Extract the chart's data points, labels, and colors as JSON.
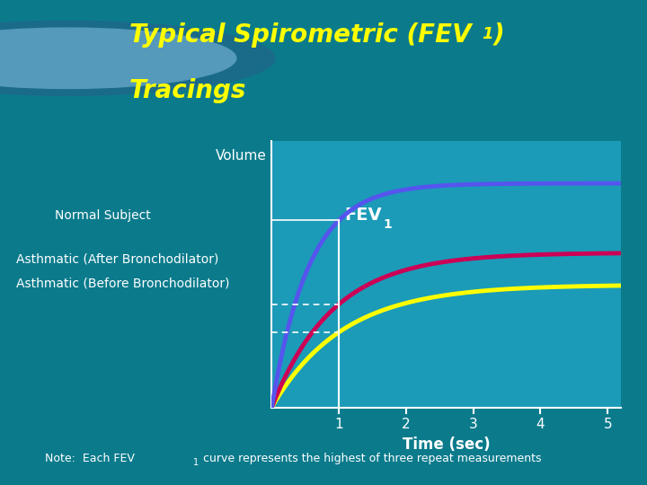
{
  "title_line1": "Typical Spirometric (FEV",
  "title_line2": "Tracings",
  "title_color": "#FFFF00",
  "header_bg": "#0B7B8C",
  "chart_bg": "#1B9BB8",
  "note_bg": "#1B9BB8",
  "separator_color": "#CCFF00",
  "curves": {
    "normal": {
      "color": "#5555EE",
      "amplitude": 4.2,
      "rate": 1.8
    },
    "after": {
      "color": "#CC0055",
      "amplitude": 2.9,
      "rate": 1.1
    },
    "before": {
      "color": "#FFFF00",
      "amplitude": 2.3,
      "rate": 0.95
    }
  },
  "fev1_line_x": 1.0,
  "x_ticks": [
    1,
    2,
    3,
    4,
    5
  ],
  "xlim": [
    0,
    5.2
  ],
  "ylim": [
    0,
    5.0
  ],
  "axis_color": "#FFFFFF",
  "tick_color": "#FFFFFF",
  "label_color": "#FFFFFF",
  "note_color": "#FFFFFF",
  "xlabel": "Time (sec)",
  "note": "Note:  Each FEV",
  "note2": " curve represents the highest of three repeat measurements"
}
